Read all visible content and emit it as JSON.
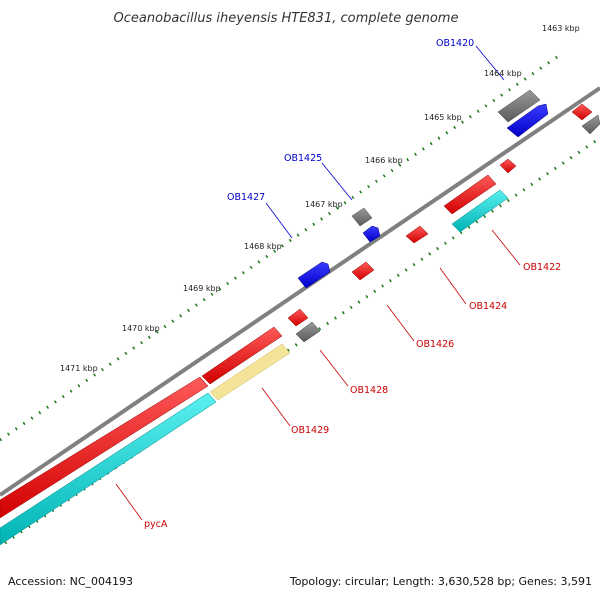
{
  "title": "Oceanobacillus iheyensis HTE831, complete genome",
  "footer": {
    "accession": "Accession: NC_004193",
    "summary": "Topology: circular; Length: 3,630,528 bp; Genes: 3,591"
  },
  "scale_labels": [
    "1463 kbp",
    "1464 kbp",
    "1465 kbp",
    "1466 kbp",
    "1467 kbp",
    "1468 kbp",
    "1469 kbp",
    "1470 kbp",
    "1471 kbp"
  ],
  "genes": [
    {
      "id": "ob1420",
      "name": "OB1420",
      "color": "#0000cc"
    },
    {
      "id": "ob1425",
      "name": "OB1425",
      "color": "#0000cc"
    },
    {
      "id": "ob1427",
      "name": "OB1427",
      "color": "#0000cc"
    },
    {
      "id": "ob1422",
      "name": "OB1422",
      "color": "#cc0000"
    },
    {
      "id": "ob1424",
      "name": "OB1424",
      "color": "#cc0000"
    },
    {
      "id": "ob1426",
      "name": "OB1426",
      "color": "#cc0000"
    },
    {
      "id": "ob1428",
      "name": "OB1428",
      "color": "#cc0000"
    },
    {
      "id": "ob1429",
      "name": "OB1429",
      "color": "#cc0000"
    },
    {
      "id": "pyca",
      "name": "pycA",
      "color": "#cc0000"
    }
  ],
  "colors": {
    "backbone": "#808080",
    "forward_gene": "#0000ff",
    "reverse_gene": "#ff0000",
    "other_gene": "#808080",
    "cds_cyan": "#00cccc",
    "cds_yellow": "#f3e49a",
    "tick": "#1a7a1a"
  }
}
